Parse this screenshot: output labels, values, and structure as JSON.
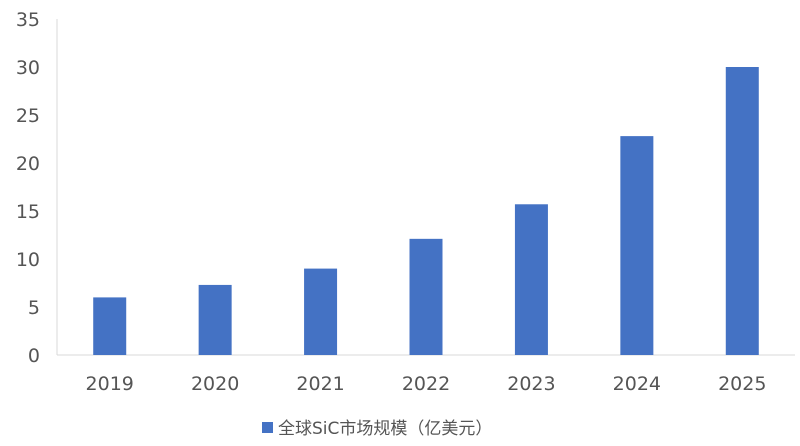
{
  "chart_data": {
    "type": "bar",
    "categories": [
      "2019",
      "2020",
      "2021",
      "2022",
      "2023",
      "2024",
      "2025"
    ],
    "series": [
      {
        "name": "全球SiC市场规模（亿美元）",
        "values": [
          6.0,
          7.3,
          9.0,
          12.1,
          15.7,
          22.8,
          30.0
        ],
        "color": "#4472C4"
      }
    ],
    "title": "",
    "xlabel": "",
    "ylabel": "",
    "ylim": [
      0,
      35
    ],
    "yticks": [
      "0",
      "5",
      "10",
      "15",
      "20",
      "25",
      "30",
      "35"
    ],
    "grid": false,
    "legend_position": "bottom-center"
  }
}
